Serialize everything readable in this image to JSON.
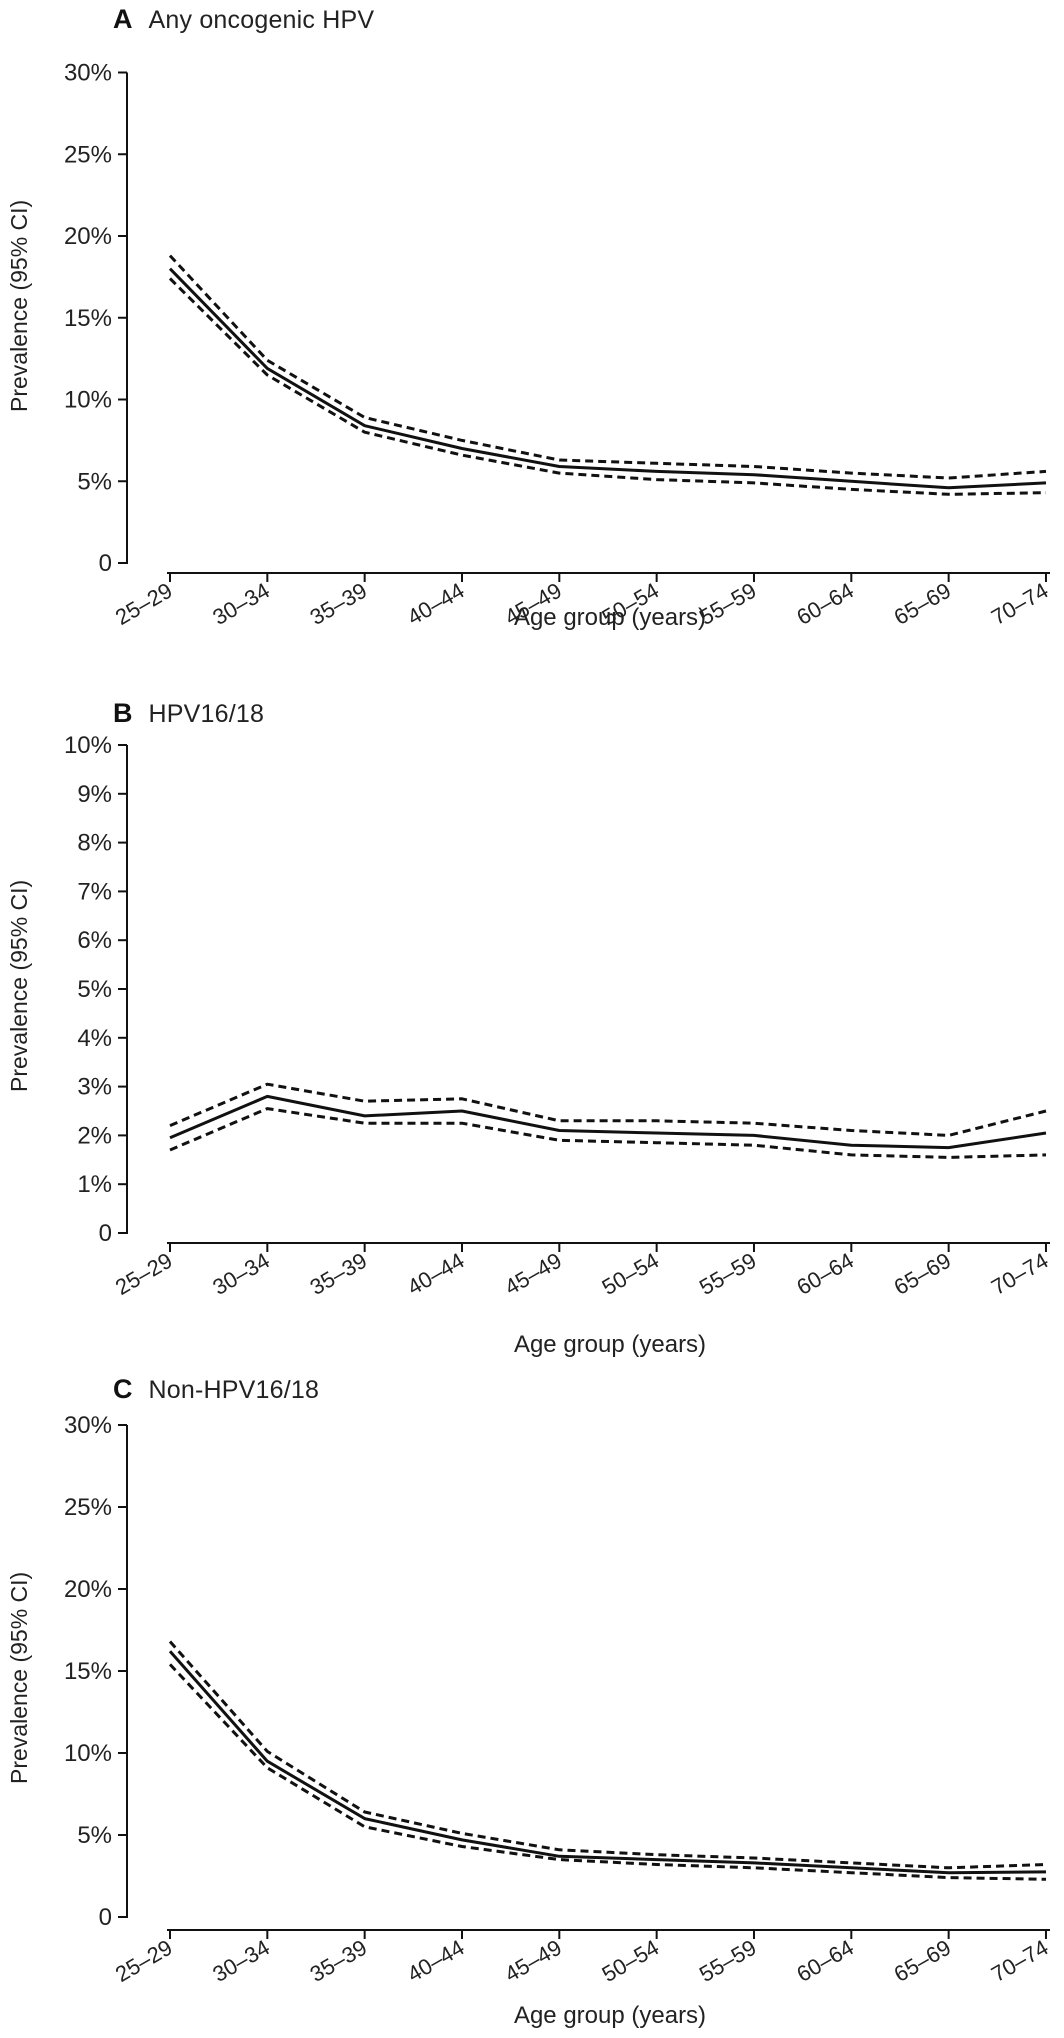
{
  "figure": {
    "background": "#ffffff",
    "line_color": "#111111",
    "x_axis_label": "Age group (years)",
    "y_axis_label": "Prevalence (95% CI)"
  },
  "chart_data": [
    {
      "type": "line",
      "panel_label": "A",
      "title": "Any oncogenic HPV",
      "x_axis_label": "Age group (years)",
      "y_axis_label": "Prevalence (95% CI)",
      "categories": [
        "25–29",
        "30–34",
        "35–39",
        "40–44",
        "45–49",
        "50–54",
        "55–59",
        "60–64",
        "65–69",
        "70–74"
      ],
      "ylim": [
        0,
        30
      ],
      "yticks": [
        0,
        5,
        10,
        15,
        20,
        25,
        30
      ],
      "ytick_format": "percent",
      "grid": "off",
      "legend": "none",
      "series": [
        {
          "name": "Prevalence estimate",
          "line_style": "solid",
          "values": [
            18.0,
            11.9,
            8.4,
            7.0,
            5.9,
            5.6,
            5.4,
            5.0,
            4.6,
            4.9
          ]
        },
        {
          "name": "Upper 95% CI",
          "line_style": "dashed",
          "values": [
            18.8,
            12.4,
            8.9,
            7.5,
            6.3,
            6.1,
            5.9,
            5.5,
            5.2,
            5.6
          ]
        },
        {
          "name": "Lower 95% CI",
          "line_style": "dashed",
          "values": [
            17.4,
            11.5,
            8.0,
            6.6,
            5.5,
            5.1,
            4.9,
            4.5,
            4.2,
            4.3
          ]
        }
      ]
    },
    {
      "type": "line",
      "panel_label": "B",
      "title": "HPV16/18",
      "x_axis_label": "Age group (years)",
      "y_axis_label": "Prevalence (95% CI)",
      "categories": [
        "25–29",
        "30–34",
        "35–39",
        "40–44",
        "45–49",
        "50–54",
        "55–59",
        "60–64",
        "65–69",
        "70–74"
      ],
      "ylim": [
        0,
        10
      ],
      "yticks": [
        0,
        1,
        2,
        3,
        4,
        5,
        6,
        7,
        8,
        9,
        10
      ],
      "ytick_format": "percent",
      "grid": "off",
      "legend": "none",
      "series": [
        {
          "name": "Prevalence estimate",
          "line_style": "solid",
          "values": [
            1.95,
            2.8,
            2.4,
            2.5,
            2.1,
            2.05,
            2.0,
            1.8,
            1.75,
            2.05
          ]
        },
        {
          "name": "Upper 95% CI",
          "line_style": "dashed",
          "values": [
            2.2,
            3.05,
            2.7,
            2.75,
            2.3,
            2.3,
            2.25,
            2.1,
            2.0,
            2.5
          ]
        },
        {
          "name": "Lower 95% CI",
          "line_style": "dashed",
          "values": [
            1.7,
            2.55,
            2.25,
            2.25,
            1.9,
            1.85,
            1.8,
            1.6,
            1.55,
            1.6
          ]
        }
      ]
    },
    {
      "type": "line",
      "panel_label": "C",
      "title": "Non-HPV16/18",
      "x_axis_label": "Age group (years)",
      "y_axis_label": "Prevalence (95% CI)",
      "categories": [
        "25–29",
        "30–34",
        "35–39",
        "40–44",
        "45–49",
        "50–54",
        "55–59",
        "60–64",
        "65–69",
        "70–74"
      ],
      "ylim": [
        0,
        30
      ],
      "yticks": [
        0,
        5,
        10,
        15,
        20,
        25,
        30
      ],
      "ytick_format": "percent",
      "grid": "off",
      "legend": "none",
      "series": [
        {
          "name": "Prevalence estimate",
          "line_style": "solid",
          "values": [
            16.2,
            9.5,
            6.0,
            4.7,
            3.7,
            3.5,
            3.3,
            3.0,
            2.7,
            2.75
          ]
        },
        {
          "name": "Upper 95% CI",
          "line_style": "dashed",
          "values": [
            16.8,
            10.1,
            6.4,
            5.1,
            4.1,
            3.8,
            3.6,
            3.3,
            3.0,
            3.2
          ]
        },
        {
          "name": "Lower 95% CI",
          "line_style": "dashed",
          "values": [
            15.4,
            9.1,
            5.5,
            4.3,
            3.5,
            3.2,
            3.0,
            2.7,
            2.4,
            2.3
          ]
        }
      ]
    }
  ]
}
